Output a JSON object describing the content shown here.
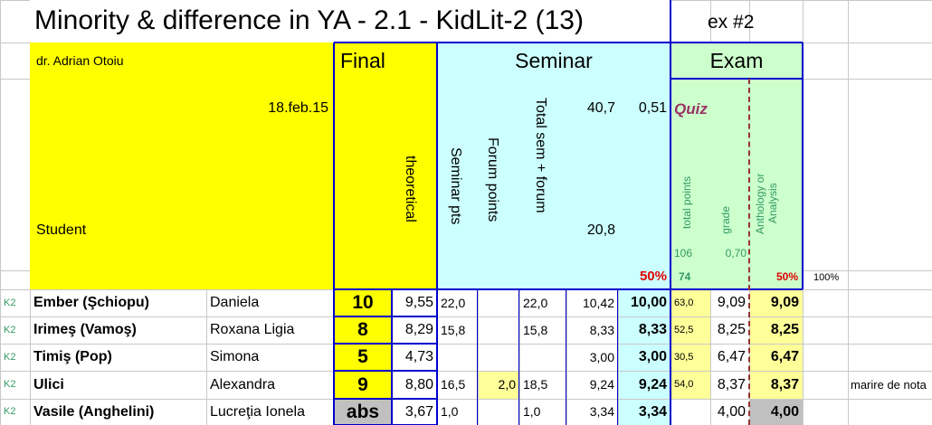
{
  "title": "Minority & difference in YA - 2.1 - KidLit-2 (13)",
  "exercise": "ex #2",
  "header": {
    "author": "dr. Adrian Otoiu",
    "date": "18.feb.15",
    "student": "Student",
    "final": "Final",
    "theoretical": "theoretical",
    "seminar": "Seminar",
    "seminar_pts": "Seminar pts",
    "forum_points": "Forum points",
    "total_sem_forum": "Total sem + forum",
    "seminar_max": "40,7",
    "seminar_ratio": "0,51",
    "seminar_half": "20,8",
    "seminar_weight": "50%",
    "exam": "Exam",
    "quiz": "Quiz",
    "total_points": "total points",
    "grade": "grade",
    "anthology": "Anthology or Analysis",
    "quiz_max": "106",
    "quiz_ratio": "0,70",
    "quiz_min": "74",
    "exam_weight": "50%",
    "total_weight": "100%"
  },
  "rows": [
    {
      "group": "K2",
      "surname": "Ember (Şchiopu)",
      "first_name": "Daniela",
      "final": "10",
      "theoretical": "9,55",
      "seminar_pts": "22,0",
      "total_sem_forum": "22,0",
      "seminar_score": "10,42",
      "seminar_grade": "10,00",
      "quiz_points": "63,0",
      "quiz_grade": "9,09",
      "exam_grade": "9,09"
    },
    {
      "group": "K2",
      "surname": "Irimeş (Vamoş)",
      "first_name": "Roxana Ligia",
      "final": "8",
      "theoretical": "8,29",
      "seminar_pts": "15,8",
      "total_sem_forum": "15,8",
      "seminar_score": "8,33",
      "seminar_grade": "8,33",
      "quiz_points": "52,5",
      "quiz_grade": "8,25",
      "exam_grade": "8,25"
    },
    {
      "group": "K2",
      "surname": "Timiş (Pop)",
      "first_name": "Simona",
      "final": "5",
      "theoretical": "4,73",
      "seminar_score": "3,00",
      "seminar_grade": "3,00",
      "quiz_points": "30,5",
      "quiz_grade": "6,47",
      "exam_grade": "6,47"
    },
    {
      "group": "K2",
      "surname": "Ulici",
      "first_name": "Alexandra",
      "final": "9",
      "theoretical": "8,80",
      "seminar_pts": "16,5",
      "forum_points": "2,0",
      "total_sem_forum": "18,5",
      "seminar_score": "9,24",
      "seminar_grade": "9,24",
      "quiz_points": "54,0",
      "quiz_grade": "8,37",
      "exam_grade": "8,37",
      "note": "marire de nota"
    },
    {
      "group": "K2",
      "surname": "Vasile (Anghelini)",
      "first_name": "Lucreţia Ionela",
      "final": "abs",
      "theoretical": "3,67",
      "seminar_pts": "1,0",
      "total_sem_forum": "1,0",
      "seminar_score": "3,34",
      "seminar_grade": "3,34",
      "quiz_grade": "4,00",
      "exam_grade": "4,00"
    }
  ]
}
